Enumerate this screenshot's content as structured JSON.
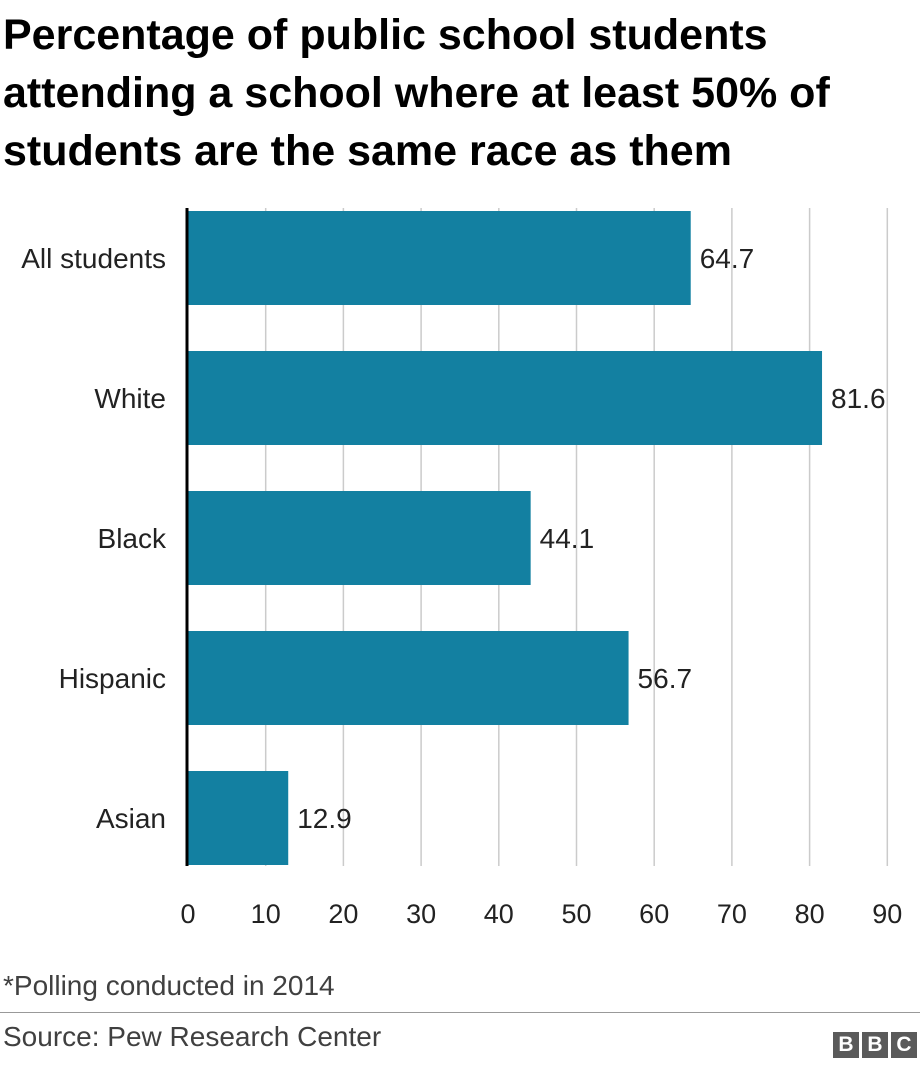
{
  "title": "Percentage of public school students attending a school where at least 50% of students are the same race as them",
  "note": "*Polling conducted in 2014",
  "source": "Source: Pew Research Center",
  "logo": [
    "B",
    "B",
    "C"
  ],
  "colors": {
    "bar": "#1380A1",
    "grid": "#cbcbcb",
    "axis": "#000000",
    "text": "#222222"
  },
  "chart_data": {
    "type": "bar",
    "orientation": "horizontal",
    "categories": [
      "All students",
      "White",
      "Black",
      "Hispanic",
      "Asian"
    ],
    "values": [
      64.7,
      81.6,
      44.1,
      56.7,
      12.9
    ],
    "value_labels": [
      "64.7",
      "81.6",
      "44.1",
      "56.7",
      "12.9"
    ],
    "xticks": [
      0,
      10,
      20,
      30,
      40,
      50,
      60,
      70,
      80,
      90
    ],
    "xlim": [
      0,
      90
    ],
    "grid": true,
    "xlabel": "",
    "ylabel": ""
  }
}
